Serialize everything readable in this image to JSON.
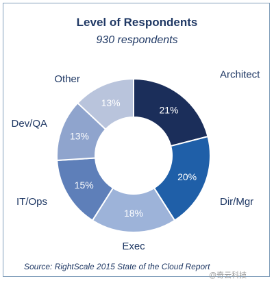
{
  "header": {
    "title": "Level of Respondents",
    "subtitle": "930 respondents"
  },
  "chart_data": {
    "type": "pie",
    "donut": true,
    "slices": [
      {
        "label": "Architect",
        "value": 21,
        "display": "21%",
        "color": "#1b2e5a"
      },
      {
        "label": "Dir/Mgr",
        "value": 20,
        "display": "20%",
        "color": "#1f5fa8"
      },
      {
        "label": "Exec",
        "value": 18,
        "display": "18%",
        "color": "#9db3d9"
      },
      {
        "label": "IT/Ops",
        "value": 15,
        "display": "15%",
        "color": "#5e7fb9"
      },
      {
        "label": "Dev/QA",
        "value": 13,
        "display": "13%",
        "color": "#8fa4cd"
      },
      {
        "label": "Other",
        "value": 13,
        "display": "13%",
        "color": "#b9c4dc"
      }
    ],
    "label_colors": {
      "light_slice_text": "#ffffff",
      "category_text": "#1f3864"
    }
  },
  "footer": {
    "source": "Source: RightScale 2015 State of the Cloud Report",
    "watermark": "@奇云科技"
  }
}
